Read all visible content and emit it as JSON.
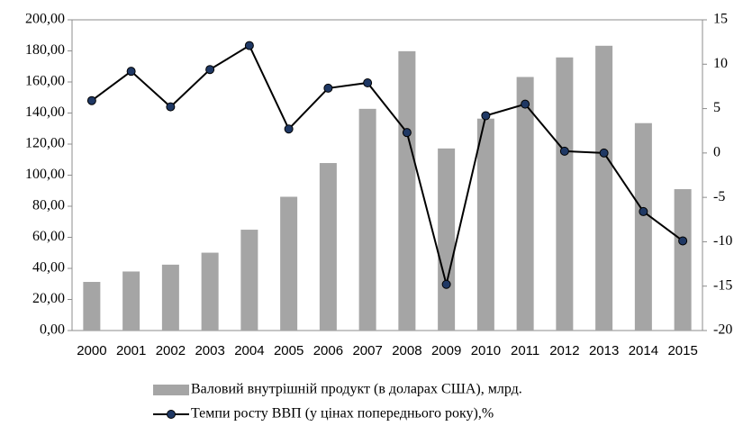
{
  "chart_data": {
    "type": "bar",
    "categories": [
      "2000",
      "2001",
      "2002",
      "2003",
      "2004",
      "2005",
      "2006",
      "2007",
      "2008",
      "2009",
      "2010",
      "2011",
      "2012",
      "2013",
      "2014",
      "2015"
    ],
    "series": [
      {
        "name": "Валовий внутрішній продукт (в доларах США), млрд.",
        "type": "bar",
        "color": "#a5a5a5",
        "values": [
          31.3,
          38.0,
          42.4,
          50.1,
          64.9,
          86.1,
          107.8,
          142.7,
          179.8,
          117.2,
          136.4,
          163.2,
          175.8,
          183.3,
          133.5,
          91.0
        ]
      },
      {
        "name": "Темпи росту ВВП (у цінах попереднього року),%",
        "type": "line",
        "axis": "y2",
        "color": "#000000",
        "marker_color": "#1f3864",
        "values": [
          5.9,
          9.2,
          5.2,
          9.4,
          12.1,
          2.7,
          7.3,
          7.9,
          2.3,
          -14.8,
          4.2,
          5.5,
          0.2,
          0.0,
          -6.6,
          -9.9
        ]
      }
    ],
    "ylim": [
      0,
      200
    ],
    "yticks": [
      {
        "value": 0,
        "label": "0,00"
      },
      {
        "value": 20,
        "label": "20,00"
      },
      {
        "value": 40,
        "label": "40,00"
      },
      {
        "value": 60,
        "label": "60,00"
      },
      {
        "value": 80,
        "label": "80,00"
      },
      {
        "value": 100,
        "label": "100,00"
      },
      {
        "value": 120,
        "label": "120,00"
      },
      {
        "value": 140,
        "label": "140,00"
      },
      {
        "value": 160,
        "label": "160,00"
      },
      {
        "value": 180,
        "label": "180,00"
      },
      {
        "value": 200,
        "label": "200,00"
      }
    ],
    "y2lim": [
      -20,
      15
    ],
    "y2ticks": [
      -20,
      -15,
      -10,
      -5,
      0,
      5,
      10,
      15
    ],
    "grid": false,
    "legend": "bottom"
  }
}
